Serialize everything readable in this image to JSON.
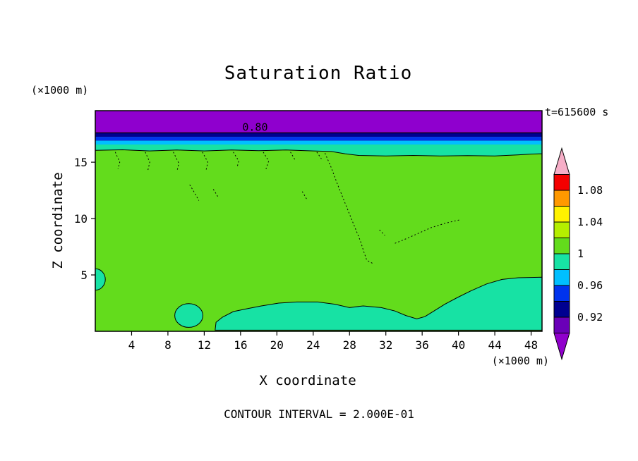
{
  "chart_data": {
    "type": "heatmap",
    "title": "Saturation Ratio",
    "time_label": "t=615600 s",
    "xlabel": "X coordinate",
    "ylabel": "Z coordinate",
    "x_unit": "(×1000 m)",
    "y_unit": "(×1000 m)",
    "contour_note": "CONTOUR INTERVAL = 2.000E-01",
    "xlim": [
      0,
      49.2
    ],
    "ylim": [
      0,
      19.57
    ],
    "x_ticks": [
      4,
      8,
      12,
      16,
      20,
      24,
      28,
      32,
      36,
      40,
      44,
      48
    ],
    "y_ticks": [
      5,
      10,
      15
    ],
    "field_color": "#63DC1C",
    "field_description": "Saturation ratio ≈ 1.00–1.02 (green) over most of the domain; decreases through 0.98–1.00 (turquoise), 0.96–0.98 (cyan), 0.94–0.96 (blue), 0.92–0.94 (navy) to below 0.92 (violet) at the model top; near-surface pockets of 0.98–1.00",
    "line_contour": {
      "label": "0.80",
      "value": 0.8,
      "z": 17.6,
      "label_x": 17.6
    },
    "top_bands": [
      {
        "name": "violet-lt-0.92",
        "z_top": 19.57,
        "z_bottom": 17.6,
        "color": "#8F00CE",
        "value_range": [
          0.8,
          0.92
        ]
      },
      {
        "name": "navy-0.92-0.94",
        "z_top": 17.6,
        "z_bottom": 17.25,
        "color": "#000090",
        "value_range": [
          0.92,
          0.94
        ]
      },
      {
        "name": "blue-0.94-0.96",
        "z_top": 17.25,
        "z_bottom": 16.9,
        "color": "#0033EE",
        "value_range": [
          0.94,
          0.96
        ]
      },
      {
        "name": "cyan-0.96-0.98",
        "z_top": 16.9,
        "z_bottom": 16.55,
        "color": "#00BFFF",
        "value_range": [
          0.96,
          0.98
        ]
      }
    ],
    "turquoise_layer": {
      "value_range": [
        0.98,
        1.0
      ],
      "color": "#17E2A4",
      "z_top": 16.55,
      "bottom_edge": [
        [
          0,
          16.05
        ],
        [
          3,
          16.1
        ],
        [
          6,
          16.0
        ],
        [
          9,
          16.08
        ],
        [
          12,
          16.0
        ],
        [
          15,
          16.08
        ],
        [
          18,
          16.02
        ],
        [
          21,
          16.08
        ],
        [
          24,
          16.0
        ],
        [
          26,
          15.95
        ],
        [
          27.5,
          15.75
        ],
        [
          29,
          15.6
        ],
        [
          32,
          15.55
        ],
        [
          35,
          15.6
        ],
        [
          38,
          15.55
        ],
        [
          41,
          15.58
        ],
        [
          44,
          15.55
        ],
        [
          46.5,
          15.65
        ],
        [
          48,
          15.72
        ],
        [
          49.2,
          15.75
        ]
      ]
    },
    "bottom_regions": [
      {
        "shape": "ellipse",
        "cx": 0,
        "cy": 4.6,
        "rx": 1.1,
        "rz": 0.95
      },
      {
        "shape": "ellipse",
        "cx": 10.3,
        "cy": 1.4,
        "rx": 1.55,
        "rz": 1.05
      },
      {
        "shape": "ellipse",
        "cx": 28.4,
        "cy": 0.75,
        "rx": 0.9,
        "rz": 0.35
      },
      {
        "shape": "polygon",
        "points": [
          [
            13.2,
            0.1
          ],
          [
            13.3,
            0.8
          ],
          [
            14.0,
            1.25
          ],
          [
            15.2,
            1.75
          ],
          [
            16.7,
            2.0
          ],
          [
            18.3,
            2.25
          ],
          [
            20.2,
            2.5
          ],
          [
            22.2,
            2.6
          ],
          [
            24.5,
            2.6
          ],
          [
            26.4,
            2.4
          ],
          [
            28.0,
            2.1
          ],
          [
            29.5,
            2.25
          ],
          [
            31.5,
            2.1
          ],
          [
            33.0,
            1.8
          ],
          [
            34.2,
            1.4
          ],
          [
            35.4,
            1.1
          ],
          [
            36.3,
            1.3
          ],
          [
            37.3,
            1.8
          ],
          [
            38.5,
            2.4
          ],
          [
            39.9,
            3.0
          ],
          [
            41.4,
            3.6
          ],
          [
            43.1,
            4.2
          ],
          [
            44.8,
            4.6
          ],
          [
            46.6,
            4.75
          ],
          [
            49.2,
            4.8
          ],
          [
            49.2,
            0.1
          ]
        ]
      }
    ],
    "dotted_contours": [
      [
        [
          2.2,
          15.9
        ],
        [
          2.7,
          15.0
        ],
        [
          2.5,
          14.4
        ]
      ],
      [
        [
          5.5,
          15.9
        ],
        [
          6.0,
          15.0
        ],
        [
          5.8,
          14.3
        ]
      ],
      [
        [
          8.6,
          15.9
        ],
        [
          9.2,
          14.9
        ],
        [
          9.0,
          14.2
        ]
      ],
      [
        [
          11.8,
          15.9
        ],
        [
          12.4,
          15.0
        ],
        [
          12.2,
          14.3
        ]
      ],
      [
        [
          15.2,
          15.9
        ],
        [
          15.8,
          15.1
        ],
        [
          15.6,
          14.5
        ]
      ],
      [
        [
          18.5,
          15.9
        ],
        [
          19.1,
          15.1
        ],
        [
          18.8,
          14.4
        ]
      ],
      [
        [
          21.5,
          15.9
        ],
        [
          22.0,
          15.2
        ]
      ],
      [
        [
          24.4,
          15.9
        ],
        [
          24.9,
          15.3
        ]
      ],
      [
        [
          10.4,
          13.0
        ],
        [
          11.0,
          12.2
        ],
        [
          11.4,
          11.6
        ]
      ],
      [
        [
          13.0,
          12.6
        ],
        [
          13.6,
          11.8
        ]
      ],
      [
        [
          22.8,
          12.4
        ],
        [
          23.3,
          11.7
        ]
      ],
      [
        [
          25.3,
          15.8
        ],
        [
          26.0,
          14.5
        ],
        [
          26.6,
          13.2
        ],
        [
          27.3,
          11.8
        ],
        [
          28.0,
          10.4
        ],
        [
          28.6,
          9.2
        ],
        [
          29.2,
          8.0
        ],
        [
          29.6,
          7.0
        ],
        [
          29.9,
          6.3
        ],
        [
          30.6,
          6.0
        ]
      ],
      [
        [
          31.3,
          9.0
        ],
        [
          31.9,
          8.5
        ]
      ],
      [
        [
          33.0,
          7.8
        ],
        [
          34.2,
          8.2
        ],
        [
          35.6,
          8.7
        ],
        [
          37.0,
          9.2
        ],
        [
          38.6,
          9.6
        ],
        [
          40.2,
          9.9
        ]
      ]
    ],
    "colorbar": {
      "vmin": 0.9,
      "vmax": 1.1,
      "cell_step": 0.02,
      "tick_labels": [
        "1.08",
        "1.04",
        "1",
        "0.96",
        "0.92"
      ],
      "tick_values": [
        1.08,
        1.04,
        1.0,
        0.96,
        0.92
      ],
      "cell_colors_top_to_bottom": [
        "#F40000",
        "#FF9900",
        "#FFF200",
        "#B5EE00",
        "#63DC1C",
        "#17E2A4",
        "#00BFFF",
        "#0033EE",
        "#000090",
        "#6A00B8"
      ],
      "arrow_top_color": "#F6AEC7",
      "arrow_bottom_color": "#9000CC"
    }
  }
}
